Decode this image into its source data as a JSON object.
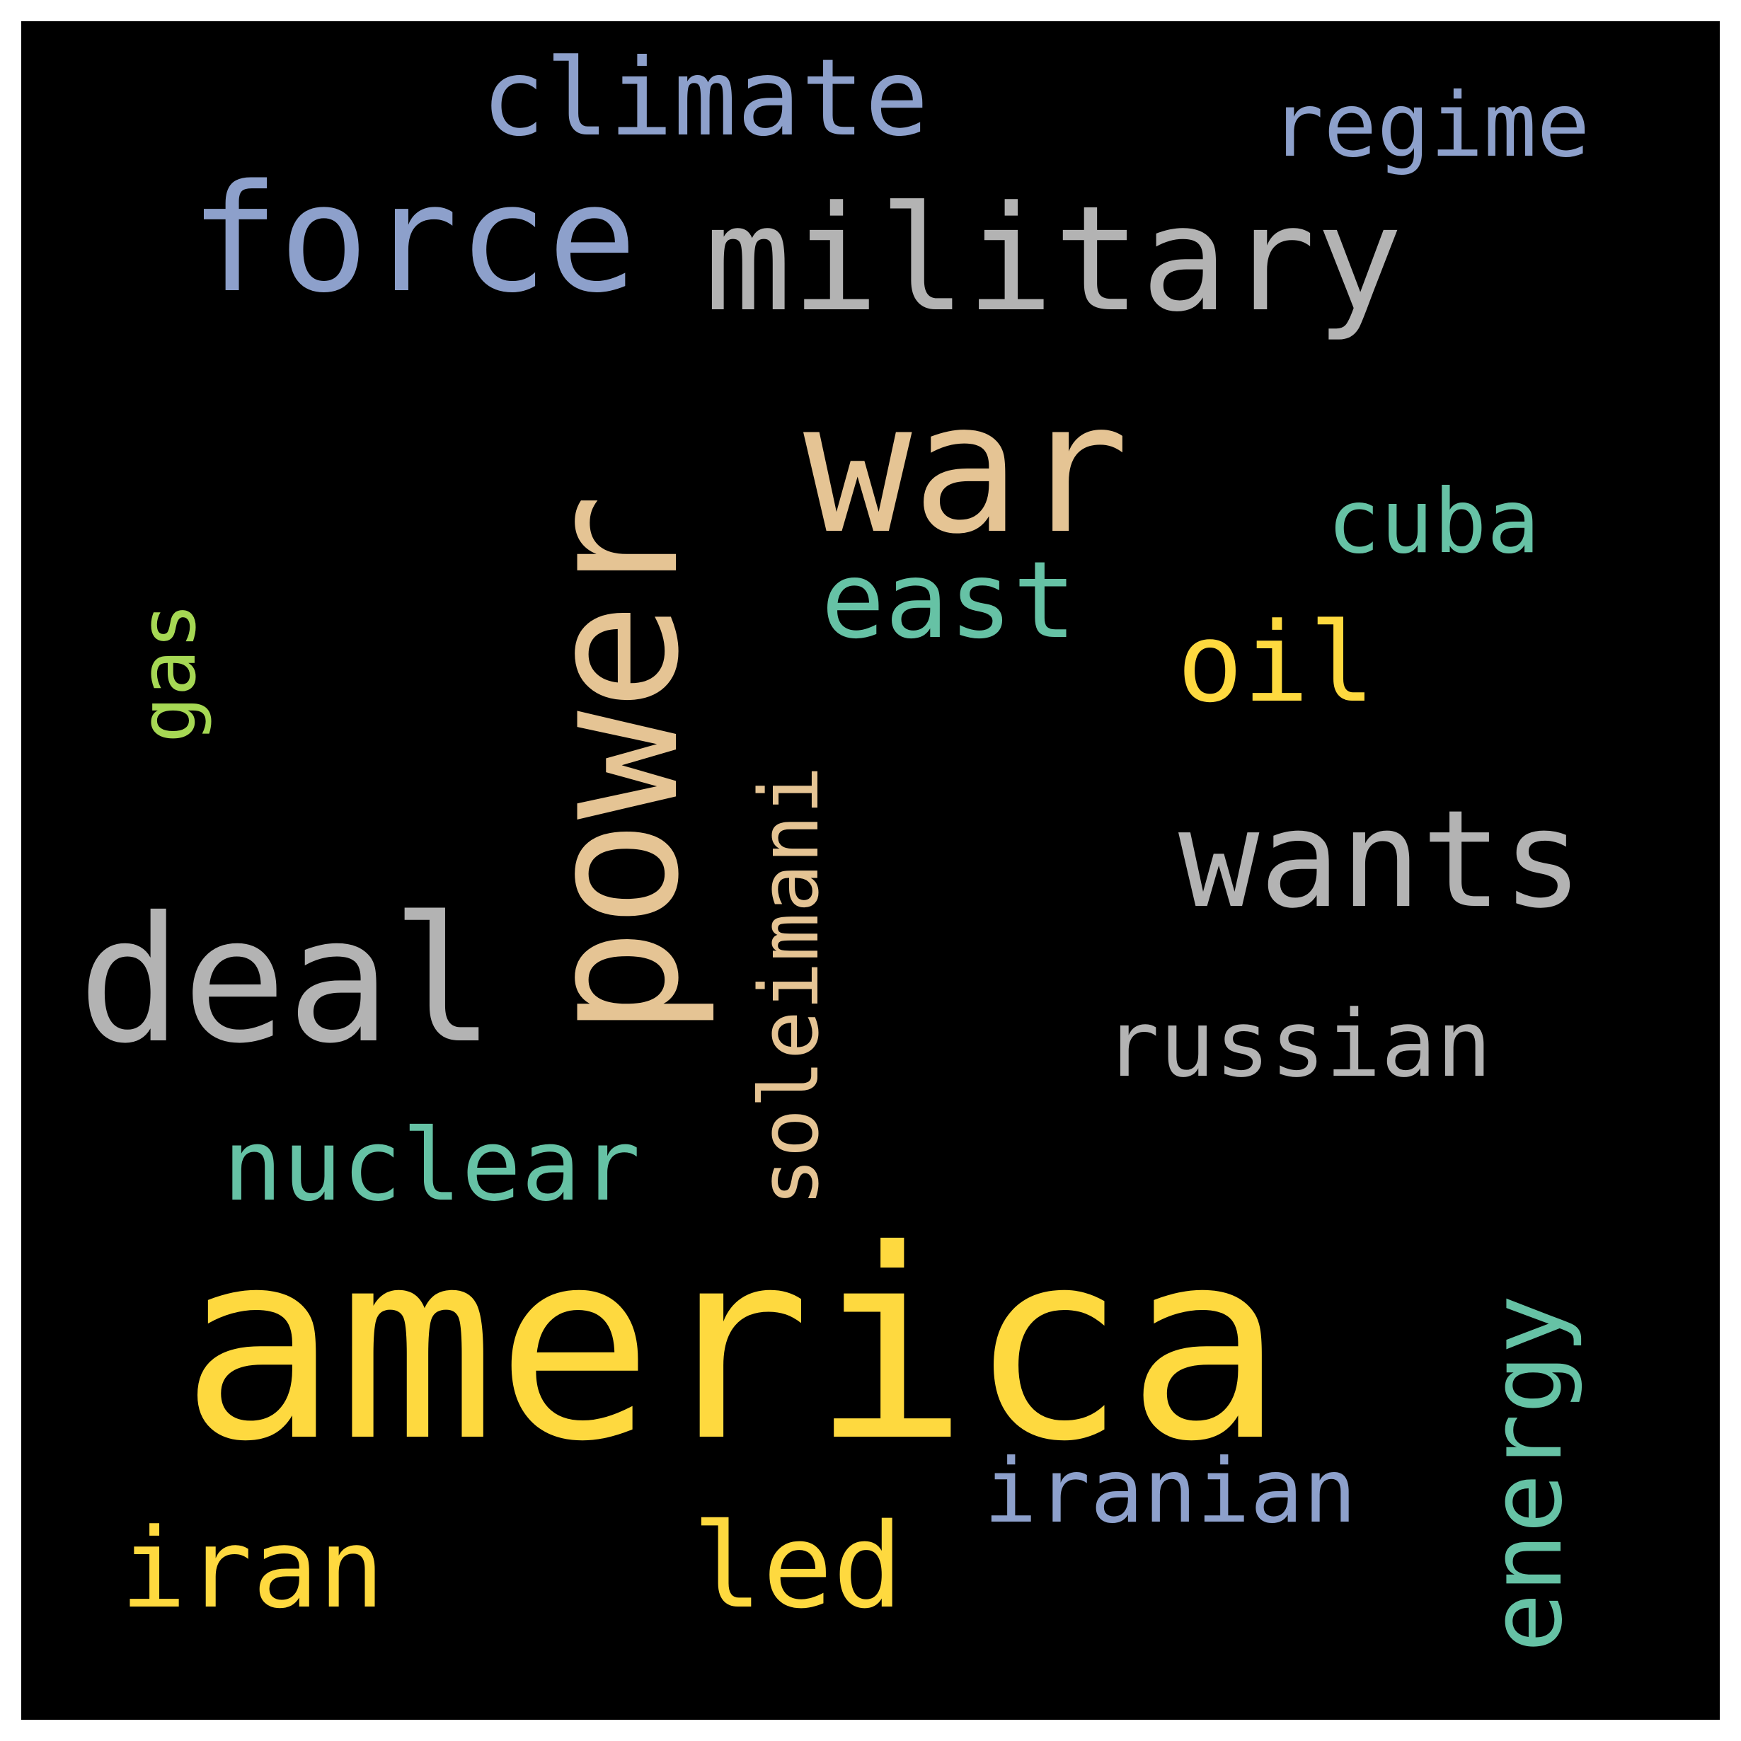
{
  "words": [
    {
      "text": "america",
      "color": "#fed93f"
    },
    {
      "text": "military",
      "color": "#b3b3b3"
    },
    {
      "text": "force",
      "color": "#8da0cb"
    },
    {
      "text": "climate",
      "color": "#8da0cb"
    },
    {
      "text": "regime",
      "color": "#8da0cb"
    },
    {
      "text": "war",
      "color": "#e5c494"
    },
    {
      "text": "power",
      "color": "#e5c494"
    },
    {
      "text": "deal",
      "color": "#b3b3b3"
    },
    {
      "text": "wants",
      "color": "#b3b3b3"
    },
    {
      "text": "cuba",
      "color": "#66c2a5"
    },
    {
      "text": "east",
      "color": "#66c2a5"
    },
    {
      "text": "oil",
      "color": "#fed93f"
    },
    {
      "text": "gas",
      "color": "#a6d854"
    },
    {
      "text": "soleimani",
      "color": "#e5c494"
    },
    {
      "text": "russian",
      "color": "#b3b3b3"
    },
    {
      "text": "nuclear",
      "color": "#66c2a5"
    },
    {
      "text": "energy",
      "color": "#66c2a5"
    },
    {
      "text": "iranian",
      "color": "#8da0cb"
    },
    {
      "text": "iran",
      "color": "#fed93f"
    },
    {
      "text": "led",
      "color": "#fed93f"
    }
  ]
}
